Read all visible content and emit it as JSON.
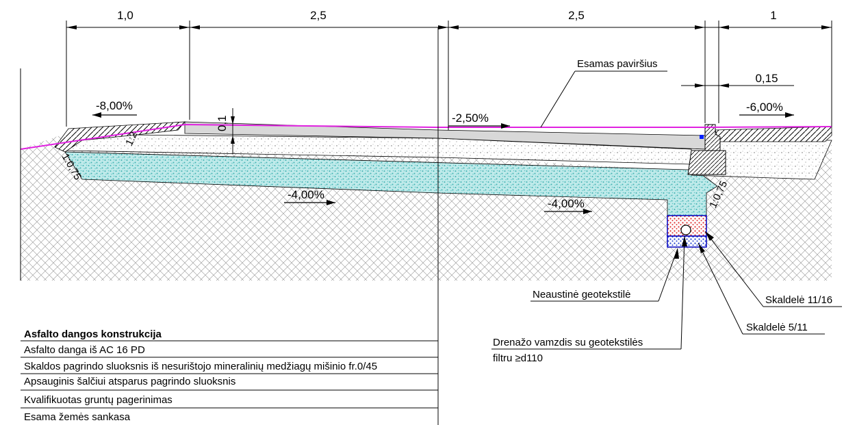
{
  "dimensions": {
    "d1": "1,0",
    "d2": "2,5",
    "d3": "2,5",
    "d4": "1",
    "d5": "0,15",
    "d6": "0,1"
  },
  "slopes": {
    "s_left": "-8,00%",
    "s_center": "-2,50%",
    "s_right": "-6,00%",
    "s_sub_left": "-4,00%",
    "s_sub_right": "-4,00%"
  },
  "ratios": {
    "r1": "1:2",
    "r2": "1:0,75",
    "r3": "1:0,75"
  },
  "callouts": {
    "surface": "Esamas paviršius",
    "geotextile": "Neaustinė geotekstilė",
    "crushed_11_16": "Skaldelė 11/16",
    "crushed_5_11": "Skaldelė 5/11",
    "drain_line1": "Drenažo vamzdis su geotekstilės",
    "drain_line2": "filtru ≥d110"
  },
  "legend": {
    "title": "Asfalto dangos konstrukcija",
    "rows": [
      "Asfalto danga iš AC 16 PD",
      "Skaldos pagrindo sluoksnis iš nesurištojo mineralinių medžiagų mišinio  fr.0/45",
      "Apsauginis šalčiui atsparus pagrindo sluoksnis",
      "Kvalifikuotas gruntų pagerinimas",
      "Esama žemės sankasa"
    ]
  },
  "colors": {
    "existing_surface": "#e020e0",
    "frost_layer": "#7fd6d6",
    "asphalt": "#d8d8d8",
    "crushed_red": "#e03030",
    "crushed_blue": "#2040d0"
  }
}
